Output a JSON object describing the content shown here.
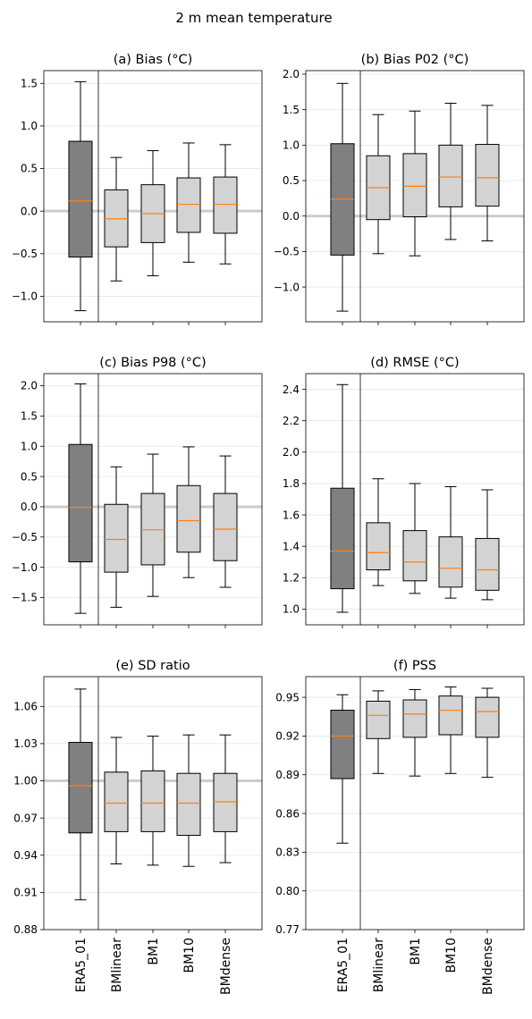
{
  "suptitle": "2 m mean temperature",
  "categories": [
    "ERA5_01",
    "BMlinear",
    "BM1",
    "BM10",
    "BMdense"
  ],
  "colors": {
    "first_box": "#808080",
    "other_boxes": "#d3d3d3",
    "median": "#ff7f0e",
    "reference_line": "#cccccc",
    "grid": "#e6e6e6"
  },
  "chart_data": [
    {
      "type": "box",
      "title": "(a) Bias (°C)",
      "ylim": [
        -1.3,
        1.65
      ],
      "yticks": [
        -1.0,
        -0.5,
        0.0,
        0.5,
        1.0,
        1.5
      ],
      "ytick_labels": [
        "−1.0",
        "−0.5",
        "0.0",
        "0.5",
        "1.0",
        "1.5"
      ],
      "reference_line": 0.0,
      "grid": true,
      "boxes": [
        {
          "whisker_low": -1.17,
          "q1": -0.54,
          "median": 0.12,
          "q3": 0.82,
          "whisker_high": 1.52
        },
        {
          "whisker_low": -0.82,
          "q1": -0.42,
          "median": -0.09,
          "q3": 0.25,
          "whisker_high": 0.63
        },
        {
          "whisker_low": -0.76,
          "q1": -0.37,
          "median": -0.03,
          "q3": 0.31,
          "whisker_high": 0.71
        },
        {
          "whisker_low": -0.6,
          "q1": -0.25,
          "median": 0.08,
          "q3": 0.39,
          "whisker_high": 0.8
        },
        {
          "whisker_low": -0.62,
          "q1": -0.26,
          "median": 0.08,
          "q3": 0.4,
          "whisker_high": 0.78
        }
      ]
    },
    {
      "type": "box",
      "title": "(b) Bias P02 (°C)",
      "ylim": [
        -1.49,
        2.05
      ],
      "yticks": [
        -1.0,
        -0.5,
        0.0,
        0.5,
        1.0,
        1.5,
        2.0
      ],
      "ytick_labels": [
        "−1.0",
        "−0.5",
        "0.0",
        "0.5",
        "1.0",
        "1.5",
        "2.0"
      ],
      "reference_line": 0.0,
      "grid": true,
      "boxes": [
        {
          "whisker_low": -1.34,
          "q1": -0.55,
          "median": 0.24,
          "q3": 1.02,
          "whisker_high": 1.87
        },
        {
          "whisker_low": -0.53,
          "q1": -0.05,
          "median": 0.4,
          "q3": 0.85,
          "whisker_high": 1.43
        },
        {
          "whisker_low": -0.56,
          "q1": -0.01,
          "median": 0.42,
          "q3": 0.88,
          "whisker_high": 1.48
        },
        {
          "whisker_low": -0.33,
          "q1": 0.13,
          "median": 0.55,
          "q3": 1.0,
          "whisker_high": 1.59
        },
        {
          "whisker_low": -0.35,
          "q1": 0.14,
          "median": 0.54,
          "q3": 1.01,
          "whisker_high": 1.56
        }
      ]
    },
    {
      "type": "box",
      "title": "(c) Bias P98 (°C)",
      "ylim": [
        -1.95,
        2.2
      ],
      "yticks": [
        -1.5,
        -1.0,
        -0.5,
        0.0,
        0.5,
        1.0,
        1.5,
        2.0
      ],
      "ytick_labels": [
        "−1.5",
        "−1.0",
        "−0.5",
        "0.0",
        "0.5",
        "1.0",
        "1.5",
        "2.0"
      ],
      "reference_line": 0.0,
      "grid": true,
      "boxes": [
        {
          "whisker_low": -1.76,
          "q1": -0.91,
          "median": -0.01,
          "q3": 1.03,
          "whisker_high": 2.03
        },
        {
          "whisker_low": -1.66,
          "q1": -1.08,
          "median": -0.54,
          "q3": 0.04,
          "whisker_high": 0.66
        },
        {
          "whisker_low": -1.48,
          "q1": -0.96,
          "median": -0.38,
          "q3": 0.22,
          "whisker_high": 0.87
        },
        {
          "whisker_low": -1.17,
          "q1": -0.75,
          "median": -0.23,
          "q3": 0.35,
          "whisker_high": 0.99
        },
        {
          "whisker_low": -1.33,
          "q1": -0.89,
          "median": -0.37,
          "q3": 0.22,
          "whisker_high": 0.84
        }
      ]
    },
    {
      "type": "box",
      "title": "(d) RMSE (°C)",
      "ylim": [
        0.9,
        2.5
      ],
      "yticks": [
        1.0,
        1.2,
        1.4,
        1.6,
        1.8,
        2.0,
        2.2,
        2.4
      ],
      "ytick_labels": [
        "1.0",
        "1.2",
        "1.4",
        "1.6",
        "1.8",
        "2.0",
        "2.2",
        "2.4"
      ],
      "reference_line": null,
      "grid": true,
      "boxes": [
        {
          "whisker_low": 0.98,
          "q1": 1.13,
          "median": 1.37,
          "q3": 1.77,
          "whisker_high": 2.43
        },
        {
          "whisker_low": 1.15,
          "q1": 1.25,
          "median": 1.36,
          "q3": 1.55,
          "whisker_high": 1.83
        },
        {
          "whisker_low": 1.1,
          "q1": 1.18,
          "median": 1.3,
          "q3": 1.5,
          "whisker_high": 1.8
        },
        {
          "whisker_low": 1.07,
          "q1": 1.14,
          "median": 1.26,
          "q3": 1.46,
          "whisker_high": 1.78
        },
        {
          "whisker_low": 1.06,
          "q1": 1.12,
          "median": 1.25,
          "q3": 1.45,
          "whisker_high": 1.76
        }
      ]
    },
    {
      "type": "box",
      "title": "(e) SD ratio",
      "ylim": [
        0.88,
        1.084
      ],
      "yticks": [
        0.88,
        0.91,
        0.94,
        0.97,
        1.0,
        1.03,
        1.06
      ],
      "ytick_labels": [
        "0.88",
        "0.91",
        "0.94",
        "0.97",
        "1.00",
        "1.03",
        "1.06"
      ],
      "reference_line": 1.0,
      "grid": true,
      "boxes": [
        {
          "whisker_low": 0.904,
          "q1": 0.958,
          "median": 0.996,
          "q3": 1.031,
          "whisker_high": 1.074
        },
        {
          "whisker_low": 0.933,
          "q1": 0.959,
          "median": 0.982,
          "q3": 1.007,
          "whisker_high": 1.035
        },
        {
          "whisker_low": 0.932,
          "q1": 0.959,
          "median": 0.982,
          "q3": 1.008,
          "whisker_high": 1.036
        },
        {
          "whisker_low": 0.931,
          "q1": 0.956,
          "median": 0.982,
          "q3": 1.006,
          "whisker_high": 1.037
        },
        {
          "whisker_low": 0.934,
          "q1": 0.959,
          "median": 0.983,
          "q3": 1.006,
          "whisker_high": 1.037
        }
      ]
    },
    {
      "type": "box",
      "title": "(f) PSS",
      "ylim": [
        0.77,
        0.966
      ],
      "yticks": [
        0.77,
        0.8,
        0.83,
        0.86,
        0.89,
        0.92,
        0.95
      ],
      "ytick_labels": [
        "0.77",
        "0.80",
        "0.83",
        "0.86",
        "0.89",
        "0.92",
        "0.95"
      ],
      "reference_line": null,
      "grid": true,
      "boxes": [
        {
          "whisker_low": 0.837,
          "q1": 0.887,
          "median": 0.92,
          "q3": 0.94,
          "whisker_high": 0.952
        },
        {
          "whisker_low": 0.891,
          "q1": 0.918,
          "median": 0.936,
          "q3": 0.947,
          "whisker_high": 0.955
        },
        {
          "whisker_low": 0.889,
          "q1": 0.919,
          "median": 0.937,
          "q3": 0.948,
          "whisker_high": 0.956
        },
        {
          "whisker_low": 0.891,
          "q1": 0.921,
          "median": 0.94,
          "q3": 0.951,
          "whisker_high": 0.958
        },
        {
          "whisker_low": 0.888,
          "q1": 0.919,
          "median": 0.939,
          "q3": 0.95,
          "whisker_high": 0.957
        }
      ]
    }
  ]
}
